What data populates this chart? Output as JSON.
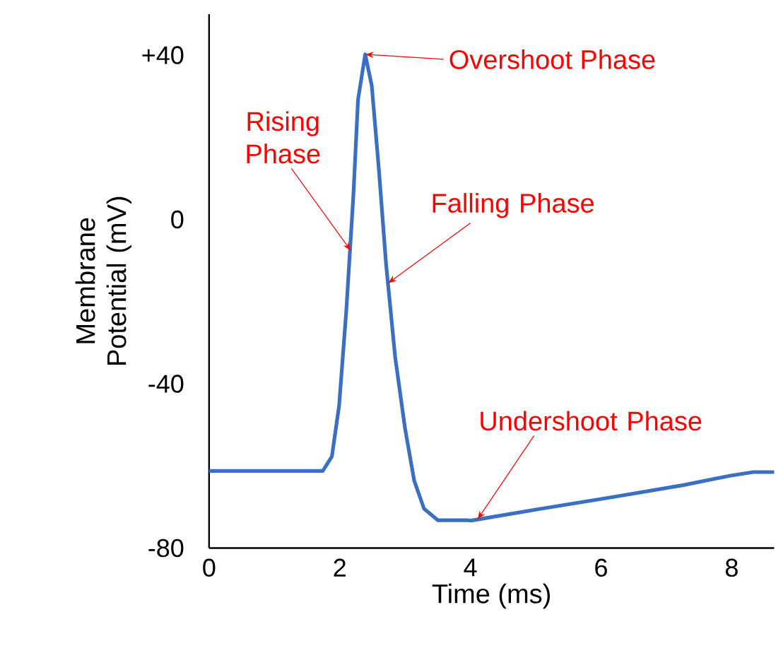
{
  "chart_data": {
    "type": "line",
    "xlabel": "Time (ms)",
    "ylabel": "Membrane Potential (mV)",
    "xlim": [
      0,
      8.65
    ],
    "ylim": [
      -80,
      50
    ],
    "xticks": [
      0,
      2,
      4,
      6,
      8
    ],
    "yticks": [
      {
        "value": 40,
        "label": "+40"
      },
      0,
      -40,
      -80
    ],
    "series": [
      {
        "color": "#3b6fc2",
        "x": [
          0,
          1.74,
          1.88,
          1.99,
          2.1,
          2.21,
          2.28,
          2.39,
          2.49,
          2.6,
          2.71,
          2.85,
          3.0,
          3.14,
          3.29,
          3.5,
          3.94,
          4.01,
          5.09,
          6.17,
          7.25,
          7.97,
          8.33,
          8.65
        ],
        "values": [
          -61.2,
          -61.2,
          -57.7,
          -45.4,
          -22.3,
          6.2,
          29.2,
          40.2,
          32.6,
          12,
          -11,
          -33.7,
          -50.9,
          -63.6,
          -70.4,
          -73.2,
          -73.2,
          -73.3,
          -70.4,
          -67.6,
          -64.7,
          -62.4,
          -61.5,
          -61.5
        ]
      }
    ],
    "annotations": [
      {
        "text": "Overshoot Phase",
        "x": 2.39,
        "y": 40.2
      },
      {
        "text": "Rising Phase",
        "x": 2.17,
        "y": -7.6
      },
      {
        "text": "Falling Phase",
        "x": 2.74,
        "y": -15.5
      },
      {
        "text": "Undershoot Phase",
        "x": 4.11,
        "y": -73
      }
    ]
  }
}
